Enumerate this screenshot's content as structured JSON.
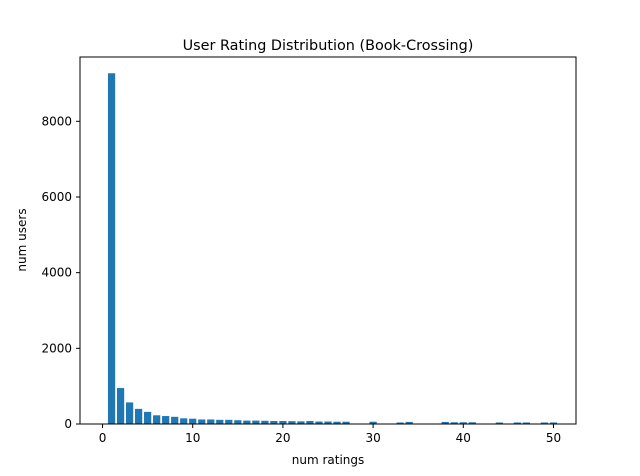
{
  "chart_data": {
    "type": "bar",
    "title": "User Rating Distribution (Book-Crossing)",
    "xlabel": "num ratings",
    "ylabel": "num users",
    "xlim": [
      -2.5,
      52.5
    ],
    "ylim": [
      0,
      9700
    ],
    "xticks": [
      0,
      10,
      20,
      30,
      40,
      50
    ],
    "yticks": [
      0,
      2000,
      4000,
      6000,
      8000
    ],
    "grid": false,
    "legend": "none",
    "bar_color": "#1f77b4",
    "bar_width": 0.8,
    "x": [
      1,
      2,
      3,
      4,
      5,
      6,
      7,
      8,
      9,
      10,
      11,
      12,
      13,
      14,
      15,
      16,
      17,
      18,
      19,
      20,
      21,
      22,
      23,
      24,
      25,
      26,
      27,
      30,
      33,
      34,
      38,
      39,
      40,
      41,
      44,
      46,
      47,
      49,
      50
    ],
    "values": [
      9270,
      950,
      570,
      400,
      320,
      230,
      210,
      190,
      150,
      140,
      120,
      120,
      110,
      110,
      100,
      90,
      90,
      85,
      80,
      80,
      75,
      70,
      80,
      65,
      65,
      60,
      60,
      60,
      40,
      55,
      55,
      45,
      45,
      45,
      40,
      40,
      40,
      40,
      40
    ]
  }
}
